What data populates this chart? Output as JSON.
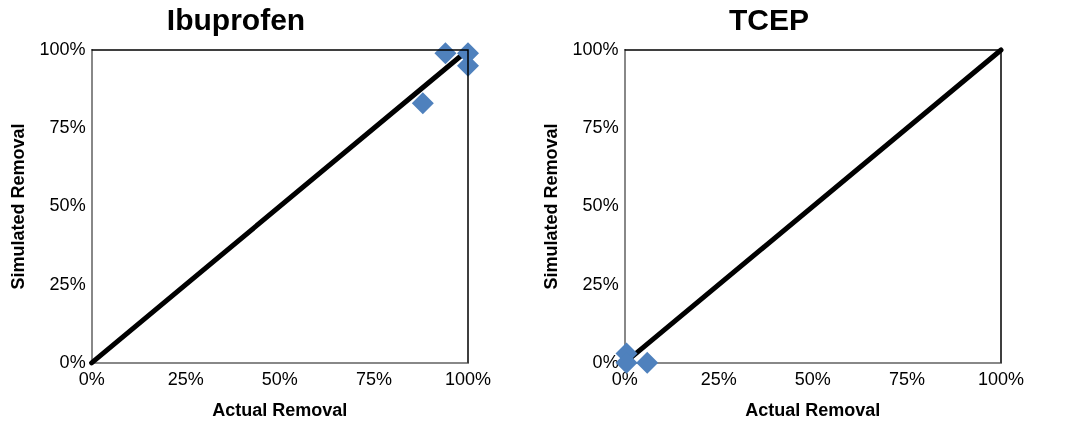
{
  "chart_data": [
    {
      "type": "scatter",
      "title": "Ibuprofen",
      "xlabel": "Actual Removal",
      "ylabel": "Simulated Removal",
      "marker": "diamond",
      "legend": false,
      "grid": false,
      "xlim": [
        0,
        100
      ],
      "ylim": [
        0,
        100
      ],
      "xticks": [
        {
          "value": 0,
          "label": "0%"
        },
        {
          "value": 25,
          "label": "25%"
        },
        {
          "value": 50,
          "label": "50%"
        },
        {
          "value": 75,
          "label": "75%"
        },
        {
          "value": 100,
          "label": "100%"
        }
      ],
      "yticks": [
        {
          "value": 0,
          "label": "0%"
        },
        {
          "value": 25,
          "label": "25%"
        },
        {
          "value": 50,
          "label": "50%"
        },
        {
          "value": 75,
          "label": "75%"
        },
        {
          "value": 100,
          "label": "100%"
        }
      ],
      "series": [
        {
          "type": "line",
          "marker": "none",
          "color": "#000000",
          "x": [
            0,
            100
          ],
          "values": [
            0,
            100
          ]
        },
        {
          "color": "#4f81bd",
          "x": [
            94,
            100,
            100,
            88
          ],
          "values": [
            99,
            99,
            95,
            83
          ]
        }
      ]
    },
    {
      "type": "scatter",
      "title": "TCEP",
      "xlabel": "Actual Removal",
      "ylabel": "Simulated Removal",
      "marker": "diamond",
      "legend": false,
      "grid": false,
      "xlim": [
        0,
        100
      ],
      "ylim": [
        0,
        100
      ],
      "xticks": [
        {
          "value": 0,
          "label": "0%"
        },
        {
          "value": 25,
          "label": "25%"
        },
        {
          "value": 50,
          "label": "50%"
        },
        {
          "value": 75,
          "label": "75%"
        },
        {
          "value": 100,
          "label": "100%"
        }
      ],
      "yticks": [
        {
          "value": 0,
          "label": "0%"
        },
        {
          "value": 25,
          "label": "25%"
        },
        {
          "value": 50,
          "label": "50%"
        },
        {
          "value": 75,
          "label": "75%"
        },
        {
          "value": 100,
          "label": "100%"
        }
      ],
      "series": [
        {
          "type": "line",
          "marker": "none",
          "color": "#000000",
          "x": [
            0,
            100
          ],
          "values": [
            0,
            100
          ]
        },
        {
          "color": "#4f81bd",
          "x": [
            0.5,
            0.5,
            6
          ],
          "values": [
            3,
            0,
            0
          ]
        }
      ]
    }
  ]
}
